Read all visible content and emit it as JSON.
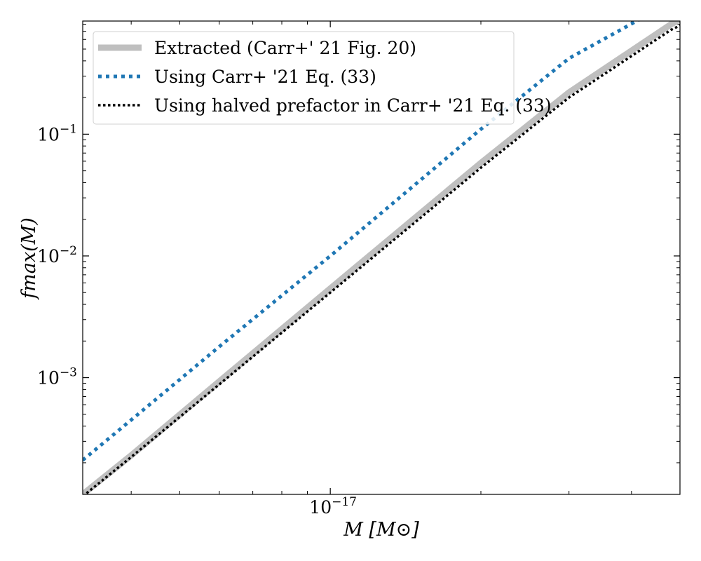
{
  "chart_data": {
    "type": "line",
    "title": "",
    "xlabel": "M [M⊙]",
    "ylabel": "fmax(M)",
    "xscale": "log",
    "yscale": "log",
    "xlim": [
      3.2e-18,
      5e-17
    ],
    "ylim": [
      0.00011,
      0.85
    ],
    "x_ticks": [
      {
        "value": 1e-17,
        "base": "10",
        "exponent": "−17"
      }
    ],
    "y_ticks": [
      {
        "value": 0.1,
        "base": "10",
        "exponent": "−1"
      },
      {
        "value": 0.01,
        "base": "10",
        "exponent": "−2"
      },
      {
        "value": 0.001,
        "base": "10",
        "exponent": "−3"
      }
    ],
    "grid": false,
    "legend_position": "top-left",
    "series": [
      {
        "name": "Extracted (Carr+' 21 Fig. 20)",
        "style": "solid",
        "color": "#bfbfbf",
        "x": [
          3.2e-18,
          4e-18,
          6e-18,
          1e-17,
          2e-17,
          3e-17,
          4.8e-17,
          5e-17
        ],
        "y": [
          0.00011,
          0.00023,
          0.00093,
          0.0054,
          0.058,
          0.22,
          0.8,
          0.88
        ]
      },
      {
        "name": "Using Carr+ '21 Eq. (33)",
        "style": "dotted",
        "color": "#1f77b4",
        "x": [
          3.2e-18,
          4e-18,
          6e-18,
          1e-17,
          2e-17,
          3e-17,
          4.3e-17
        ],
        "y": [
          0.00021,
          0.00045,
          0.0018,
          0.01,
          0.11,
          0.42,
          0.95
        ]
      },
      {
        "name": "Using halved prefactor in Carr+ '21 Eq. (33)",
        "style": "dotted",
        "color": "#000000",
        "x": [
          3.2e-18,
          4e-18,
          6e-18,
          1e-17,
          2e-17,
          3e-17,
          4.8e-17,
          5e-17
        ],
        "y": [
          0.000106,
          0.000223,
          0.00088,
          0.005,
          0.053,
          0.2,
          0.72,
          0.78
        ]
      }
    ]
  }
}
